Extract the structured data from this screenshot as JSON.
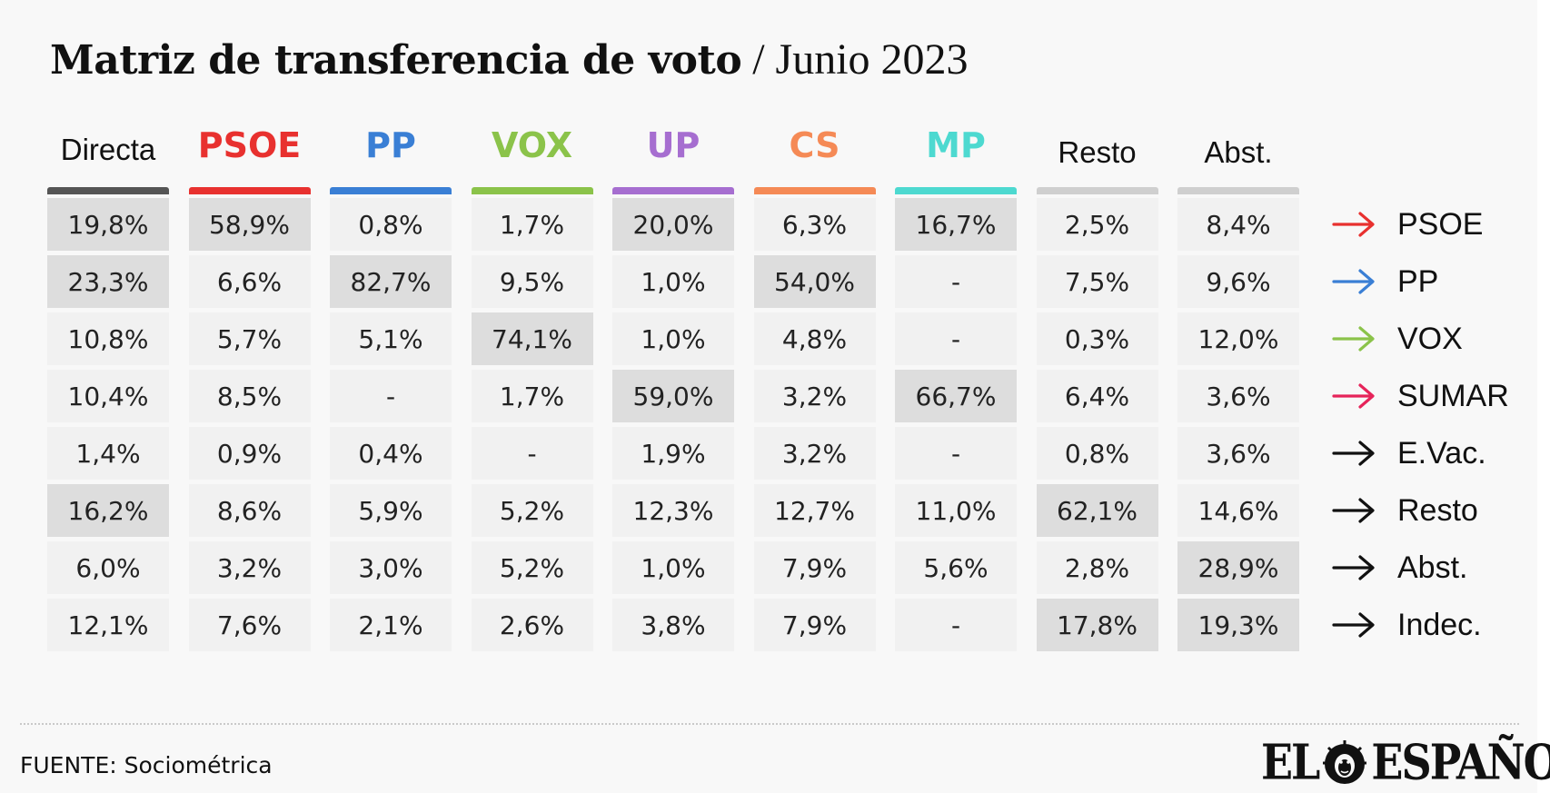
{
  "title": {
    "main": "Matriz de transferencia de voto",
    "sub": " / Junio 2023"
  },
  "chart_data": {
    "type": "table",
    "columns": [
      {
        "label": "Directa",
        "color": "#555555",
        "style": "plain"
      },
      {
        "label": "PSOE",
        "color": "#e8312f",
        "style": "party"
      },
      {
        "label": "PP",
        "color": "#3a7fd5",
        "style": "party"
      },
      {
        "label": "VOX",
        "color": "#8bc34a",
        "style": "party"
      },
      {
        "label": "UP",
        "color": "#a66ed0",
        "style": "party"
      },
      {
        "label": "CS",
        "color": "#f58a56",
        "style": "party"
      },
      {
        "label": "MP",
        "color": "#4dd9d0",
        "style": "party"
      },
      {
        "label": "Resto",
        "color": "#cfcfcf",
        "style": "plain"
      },
      {
        "label": "Abst.",
        "color": "#cfcfcf",
        "style": "plain"
      }
    ],
    "rows": [
      {
        "label": "PSOE",
        "arrow_color": "#e8312f",
        "values": [
          "19,8%",
          "58,9%",
          "0,8%",
          "1,7%",
          "20,0%",
          "6,3%",
          "16,7%",
          "2,5%",
          "8,4%"
        ],
        "highlight": [
          true,
          true,
          false,
          false,
          true,
          false,
          true,
          false,
          false
        ]
      },
      {
        "label": "PP",
        "arrow_color": "#3a7fd5",
        "values": [
          "23,3%",
          "6,6%",
          "82,7%",
          "9,5%",
          "1,0%",
          "54,0%",
          "-",
          "7,5%",
          "9,6%"
        ],
        "highlight": [
          true,
          false,
          true,
          false,
          false,
          true,
          false,
          false,
          false
        ]
      },
      {
        "label": "VOX",
        "arrow_color": "#8bc34a",
        "values": [
          "10,8%",
          "5,7%",
          "5,1%",
          "74,1%",
          "1,0%",
          "4,8%",
          "-",
          "0,3%",
          "12,0%"
        ],
        "highlight": [
          false,
          false,
          false,
          true,
          false,
          false,
          false,
          false,
          false
        ]
      },
      {
        "label": "SUMAR",
        "arrow_color": "#e6245a",
        "values": [
          "10,4%",
          "8,5%",
          "-",
          "1,7%",
          "59,0%",
          "3,2%",
          "66,7%",
          "6,4%",
          "3,6%"
        ],
        "highlight": [
          false,
          false,
          false,
          false,
          true,
          false,
          true,
          false,
          false
        ]
      },
      {
        "label": "E.Vac.",
        "arrow_color": "#111111",
        "values": [
          "1,4%",
          "0,9%",
          "0,4%",
          "-",
          "1,9%",
          "3,2%",
          "-",
          "0,8%",
          "3,6%"
        ],
        "highlight": [
          false,
          false,
          false,
          false,
          false,
          false,
          false,
          false,
          false
        ]
      },
      {
        "label": "Resto",
        "arrow_color": "#111111",
        "values": [
          "16,2%",
          "8,6%",
          "5,9%",
          "5,2%",
          "12,3%",
          "12,7%",
          "11,0%",
          "62,1%",
          "14,6%"
        ],
        "highlight": [
          true,
          false,
          false,
          false,
          false,
          false,
          false,
          true,
          false
        ]
      },
      {
        "label": "Abst.",
        "arrow_color": "#111111",
        "values": [
          "6,0%",
          "3,2%",
          "3,0%",
          "5,2%",
          "1,0%",
          "7,9%",
          "5,6%",
          "2,8%",
          "28,9%"
        ],
        "highlight": [
          false,
          false,
          false,
          false,
          false,
          false,
          false,
          false,
          true
        ]
      },
      {
        "label": "Indec.",
        "arrow_color": "#111111",
        "values": [
          "12,1%",
          "7,6%",
          "2,1%",
          "2,6%",
          "3,8%",
          "7,9%",
          "-",
          "17,8%",
          "19,3%"
        ],
        "highlight": [
          false,
          false,
          false,
          false,
          false,
          false,
          false,
          true,
          true
        ]
      }
    ]
  },
  "footer": {
    "source": "FUENTE: Sociométrica",
    "logo_left": "EL",
    "logo_right": "ESPAÑOL",
    "logo_icon": "lion-icon"
  }
}
